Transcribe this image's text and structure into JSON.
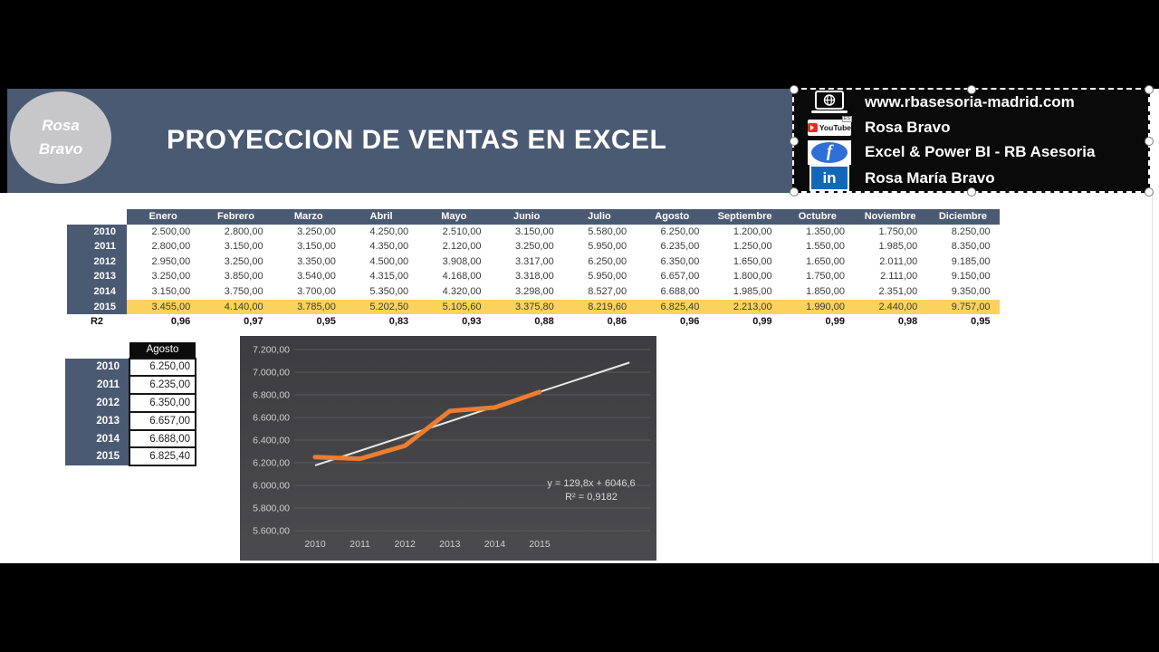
{
  "header": {
    "title": "PROYECCION DE VENTAS EN EXCEL",
    "avatar_line1": "Rosa",
    "avatar_line2": "Bravo"
  },
  "social_panel": {
    "items": [
      {
        "icon": "website-icon",
        "label": "www.rbasesoria-madrid.com"
      },
      {
        "icon": "youtube-icon",
        "label": "Rosa Bravo"
      },
      {
        "icon": "facebook-icon",
        "label": "Excel & Power BI - RB Asesoria"
      },
      {
        "icon": "linkedin-icon",
        "label": "Rosa María Bravo"
      }
    ],
    "youtube_text": "YouTube",
    "youtube_badge": "ES",
    "facebook_letter": "f",
    "linkedin_letter": "in"
  },
  "sales_table": {
    "months": [
      "Enero",
      "Febrero",
      "Marzo",
      "Abril",
      "Mayo",
      "Junio",
      "Julio",
      "Agosto",
      "Septiembre",
      "Octubre",
      "Noviembre",
      "Diciembre"
    ],
    "rows": [
      {
        "year": "2010",
        "values": [
          "2.500,00",
          "2.800,00",
          "3.250,00",
          "4.250,00",
          "2.510,00",
          "3.150,00",
          "5.580,00",
          "6.250,00",
          "1.200,00",
          "1.350,00",
          "1.750,00",
          "8.250,00"
        ]
      },
      {
        "year": "2011",
        "values": [
          "2.800,00",
          "3.150,00",
          "3.150,00",
          "4.350,00",
          "2.120,00",
          "3.250,00",
          "5.950,00",
          "6.235,00",
          "1.250,00",
          "1.550,00",
          "1.985,00",
          "8.350,00"
        ]
      },
      {
        "year": "2012",
        "values": [
          "2.950,00",
          "3.250,00",
          "3.350,00",
          "4.500,00",
          "3.908,00",
          "3.317,00",
          "6.250,00",
          "6.350,00",
          "1.650,00",
          "1.650,00",
          "2.011,00",
          "9.185,00"
        ]
      },
      {
        "year": "2013",
        "values": [
          "3.250,00",
          "3.850,00",
          "3.540,00",
          "4.315,00",
          "4.168,00",
          "3.318,00",
          "5.950,00",
          "6.657,00",
          "1.800,00",
          "1.750,00",
          "2.111,00",
          "9.150,00"
        ]
      },
      {
        "year": "2014",
        "values": [
          "3.150,00",
          "3.750,00",
          "3.700,00",
          "5.350,00",
          "4.320,00",
          "3.298,00",
          "8.527,00",
          "6.688,00",
          "1.985,00",
          "1.850,00",
          "2.351,00",
          "9.350,00"
        ]
      },
      {
        "year": "2015",
        "values": [
          "3.455,00",
          "4.140,00",
          "3.785,00",
          "5.202,50",
          "5.105,60",
          "3.375,80",
          "8.219,60",
          "6.825,40",
          "2.213,00",
          "1.990,00",
          "2.440,00",
          "9.757,00"
        ]
      }
    ],
    "highlighted_year": "2015",
    "r2_label": "R2",
    "r2_values": [
      "0,96",
      "0,97",
      "0,95",
      "0,83",
      "0,93",
      "0,88",
      "0,86",
      "0,96",
      "0,99",
      "0,99",
      "0,98",
      "0,95"
    ]
  },
  "agosto_table": {
    "header": "Agosto",
    "rows": [
      {
        "year": "2010",
        "value": "6.250,00"
      },
      {
        "year": "2011",
        "value": "6.235,00"
      },
      {
        "year": "2012",
        "value": "6.350,00"
      },
      {
        "year": "2013",
        "value": "6.657,00"
      },
      {
        "year": "2014",
        "value": "6.688,00"
      },
      {
        "year": "2015",
        "value": "6.825,40"
      }
    ]
  },
  "chart_data": {
    "type": "line",
    "title": "",
    "x": [
      "2010",
      "2011",
      "2012",
      "2013",
      "2014",
      "2015"
    ],
    "series": [
      {
        "name": "Agosto",
        "values": [
          6250,
          6235,
          6350,
          6657,
          6688,
          6825.4
        ],
        "color": "#ED7D31"
      }
    ],
    "trendline": {
      "equation": "y = 129,8x + 6046,6",
      "r_squared": "R² = 0,9182",
      "slope": 129.8,
      "intercept": 6046.6,
      "x_start": 1,
      "x_end": 8,
      "color": "#e8e8e8"
    },
    "ylim": [
      5600,
      7200
    ],
    "ytick_step": 200,
    "y_tick_labels": [
      "7.200,00",
      "7.000,00",
      "6.800,00",
      "6.600,00",
      "6.400,00",
      "6.200,00",
      "6.000,00",
      "5.800,00",
      "5.600,00"
    ],
    "grid": true,
    "legend": "none",
    "xlabel": "",
    "ylabel": ""
  },
  "colors": {
    "banner": "#4a5a72",
    "table_header": "#4a5a72",
    "highlight_row": "#fbd25b",
    "series_orange": "#ED7D31",
    "trendline_white": "#e8e8e8",
    "chart_bg": "#434346",
    "panel_bg": "#0a0a0a",
    "youtube_red": "#e62a24",
    "facebook_blue": "#2e6fd8",
    "linkedin_blue": "#1467b7",
    "avatar_gray": "#c7c7ca"
  }
}
